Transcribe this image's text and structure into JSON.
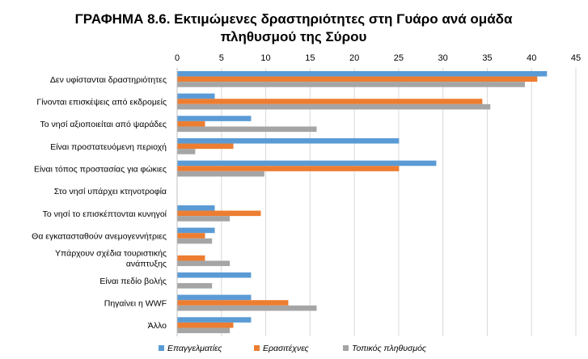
{
  "chart_data": {
    "type": "bar",
    "orientation": "horizontal",
    "title_lines": [
      "ΓΡΑΦΗΜΑ 8.6. Εκτιμώμενες δραστηριότητες στη Γυάρο ανά ομάδα",
      "πληθυσμού της Σύρου"
    ],
    "xlim": [
      0,
      45
    ],
    "xticks": [
      0,
      5,
      10,
      15,
      20,
      25,
      30,
      35,
      40,
      45
    ],
    "xtick_position": "top",
    "grid": true,
    "legend_position": "bottom",
    "categories": [
      [
        "Δεν υφίστανται δραστηριότητες"
      ],
      [
        "Γίνονται επισκέψεις από εκδρομείς"
      ],
      [
        "Το νησί αξιοποιείται από ψαράδες"
      ],
      [
        "Είναι προστατευόμενη περιοχή"
      ],
      [
        "Είναι τόπος προστασίας για φώκιες"
      ],
      [
        "Στο νησί υπάρχει κτηνοτροφία"
      ],
      [
        "Το νησί το επισκέπτονται κυνηγοί"
      ],
      [
        "Θα εγκατασταθούν ανεμογεννήτριες"
      ],
      [
        "Υπάρχουν σχέδια τουριστικής",
        "ανάπτυξης"
      ],
      [
        "Είναι πεδίο βολής"
      ],
      [
        "Πηγαίνει η WWF"
      ],
      [
        "Άλλο"
      ]
    ],
    "series": [
      {
        "name": "Επαγγελματίες",
        "color": "#5b9bd5",
        "values": [
          41.7,
          4.2,
          8.3,
          25.0,
          29.2,
          0,
          4.2,
          4.2,
          0,
          8.3,
          8.3,
          8.3
        ]
      },
      {
        "name": "Ερασιτέχνες",
        "color": "#ed7d31",
        "values": [
          40.6,
          34.4,
          3.1,
          6.3,
          25.0,
          0,
          9.4,
          3.1,
          3.1,
          0,
          12.5,
          6.3
        ]
      },
      {
        "name": "Τοπικός πληθυσμός",
        "color": "#a5a5a5",
        "values": [
          39.2,
          35.3,
          15.7,
          2.0,
          9.8,
          0,
          5.9,
          3.9,
          5.9,
          3.9,
          15.7,
          5.9
        ]
      }
    ]
  }
}
